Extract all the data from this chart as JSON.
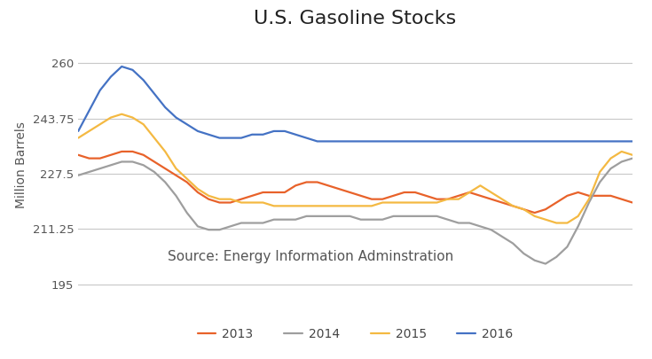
{
  "title": "U.S. Gasoline Stocks",
  "ylabel": "Million Barrels",
  "source_text": "Source: Energy Information Adminstration",
  "ylim": [
    192,
    268
  ],
  "yticks": [
    195,
    211.25,
    227.5,
    243.75,
    260
  ],
  "ytick_labels": [
    "195",
    "211.25",
    "227.5",
    "243.75",
    "260"
  ],
  "background_color": "#ffffff",
  "grid_color": "#c8c8c8",
  "title_fontsize": 16,
  "ylabel_fontsize": 10,
  "source_fontsize": 11,
  "legend_fontsize": 10,
  "series": {
    "2013": {
      "color": "#E8622A",
      "data": [
        233,
        232,
        232,
        233,
        234,
        234,
        233,
        231,
        229,
        227,
        225,
        222,
        220,
        219,
        219,
        220,
        221,
        222,
        222,
        222,
        224,
        225,
        225,
        224,
        223,
        222,
        221,
        220,
        220,
        221,
        222,
        222,
        221,
        220,
        220,
        221,
        222,
        221,
        220,
        219,
        218,
        217,
        216,
        217,
        219,
        221,
        222,
        221,
        221,
        221,
        220,
        219
      ]
    },
    "2014": {
      "color": "#9E9E9E",
      "data": [
        227,
        228,
        229,
        230,
        231,
        231,
        230,
        228,
        225,
        221,
        216,
        212,
        211,
        211,
        212,
        213,
        213,
        213,
        214,
        214,
        214,
        215,
        215,
        215,
        215,
        215,
        214,
        214,
        214,
        215,
        215,
        215,
        215,
        215,
        214,
        213,
        213,
        212,
        211,
        209,
        207,
        204,
        202,
        201,
        203,
        206,
        212,
        219,
        225,
        229,
        231,
        232
      ]
    },
    "2015": {
      "color": "#F4B942",
      "data": [
        238,
        240,
        242,
        244,
        245,
        244,
        242,
        238,
        234,
        229,
        226,
        223,
        221,
        220,
        220,
        219,
        219,
        219,
        218,
        218,
        218,
        218,
        218,
        218,
        218,
        218,
        218,
        218,
        219,
        219,
        219,
        219,
        219,
        219,
        220,
        220,
        222,
        224,
        222,
        220,
        218,
        217,
        215,
        214,
        213,
        213,
        215,
        220,
        228,
        232,
        234,
        233
      ]
    },
    "2016": {
      "color": "#4472C4",
      "data": [
        240,
        246,
        252,
        256,
        259,
        258,
        255,
        251,
        247,
        244,
        242,
        240,
        239,
        238,
        238,
        238,
        239,
        239,
        240,
        240,
        239,
        238,
        237,
        237,
        237,
        237,
        237,
        237,
        237,
        237,
        237,
        237,
        237,
        237,
        237,
        237,
        237,
        237,
        237,
        237,
        237,
        237,
        237,
        237,
        237,
        237,
        237,
        237,
        237,
        237,
        237,
        237
      ]
    }
  }
}
